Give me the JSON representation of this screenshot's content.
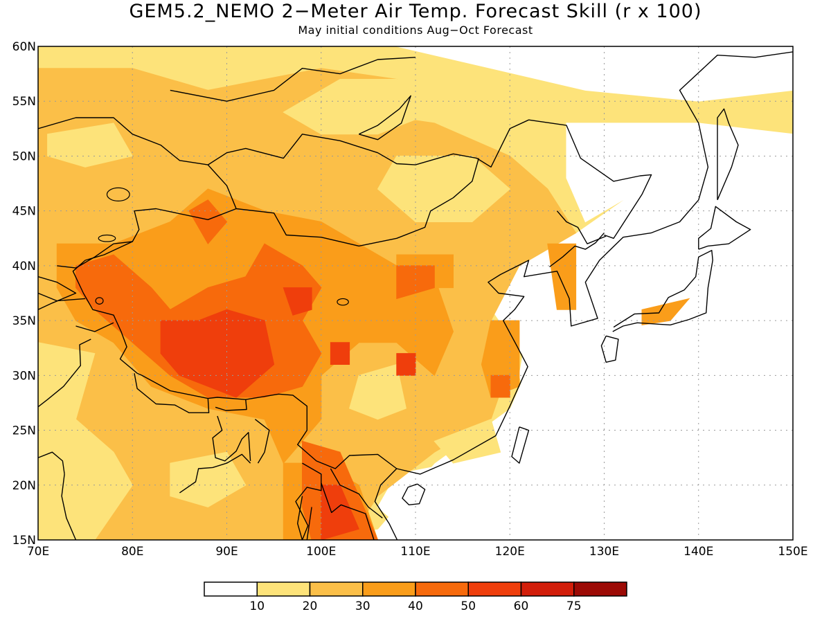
{
  "title": "GEM5.2_NEMO 2−Meter Air Temp. Forecast Skill (r x 100)",
  "subtitle": "May initial conditions  Aug−Oct Forecast",
  "colors": {
    "c0": "#ffffff",
    "c1": "#fde37a",
    "c2": "#fbbf48",
    "c3": "#fa9d1a",
    "c4": "#f76a0c",
    "c5": "#ef3e0c",
    "c6": "#d21e0a",
    "c7": "#9c0a05",
    "coast": "#000000",
    "grid": "#9a9a9a"
  },
  "map": {
    "lon_range": [
      70,
      150
    ],
    "lat_range": [
      15,
      60
    ],
    "lon_ticks": [
      "70E",
      "80E",
      "90E",
      "100E",
      "110E",
      "120E",
      "130E",
      "140E",
      "150E"
    ],
    "lat_ticks": [
      "15N",
      "20N",
      "25N",
      "30N",
      "35N",
      "40N",
      "45N",
      "50N",
      "55N",
      "60N"
    ],
    "gridlines": "dotted"
  },
  "colorbar": {
    "labels": [
      "10",
      "20",
      "30",
      "40",
      "50",
      "60",
      "75"
    ]
  }
}
